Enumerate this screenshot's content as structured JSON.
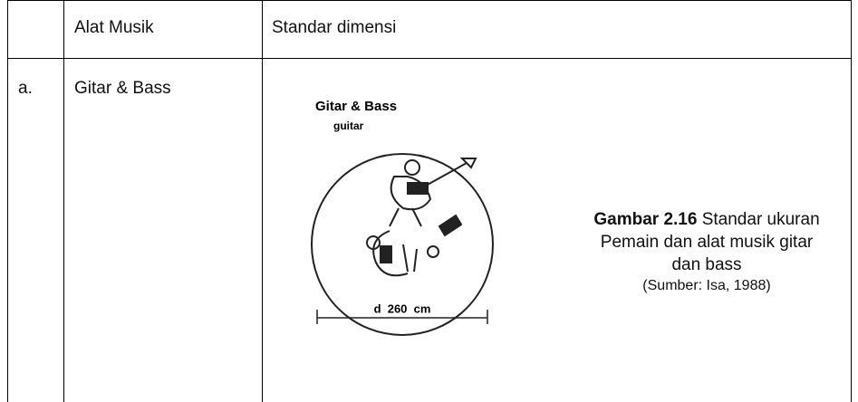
{
  "table": {
    "header": [
      "Alat Musik",
      "Standar dimensi"
    ],
    "rows": [
      {
        "label": "a.",
        "instrument": "Gitar & Bass",
        "figure": {
          "title": "Gitar & Bass",
          "sublabel": "guitar",
          "dimension": "d  260  cm"
        },
        "caption": {
          "figure_number": "Gambar 2.16",
          "text": "Standar ukuran Pemain dan alat musik gitar dan bass",
          "source": "(Sumber: Isa, 1988)"
        }
      }
    ]
  }
}
